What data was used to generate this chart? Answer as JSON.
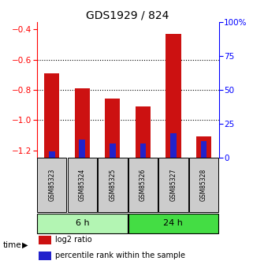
{
  "title": "GDS1929 / 824",
  "samples": [
    "GSM85323",
    "GSM85324",
    "GSM85325",
    "GSM85326",
    "GSM85327",
    "GSM85328"
  ],
  "log2_ratios": [
    -0.69,
    -0.79,
    -0.86,
    -0.91,
    -0.43,
    -1.11
  ],
  "percentile_ranks": [
    5,
    14,
    11,
    11,
    19,
    13
  ],
  "groups": [
    "6 h",
    "6 h",
    "6 h",
    "24 h",
    "24 h",
    "24 h"
  ],
  "group_labels": [
    "6 h",
    "24 h"
  ],
  "group_colors": [
    "#b3f5b3",
    "#44dd44"
  ],
  "left_ylim": [
    -1.25,
    -0.35
  ],
  "left_yticks": [
    -1.2,
    -1.0,
    -0.8,
    -0.6,
    -0.4
  ],
  "right_ylim": [
    0,
    106.25
  ],
  "right_yticks": [
    0,
    25,
    50,
    75,
    100
  ],
  "right_yticklabels": [
    "0",
    "25",
    "50",
    "75",
    "100%"
  ],
  "bar_color_red": "#cc1111",
  "bar_color_blue": "#2222cc",
  "bar_width": 0.5,
  "sample_bg_color": "#cccccc",
  "time_label": "time",
  "legend_log2": "log2 ratio",
  "legend_pct": "percentile rank within the sample",
  "grid_yticks": [
    -0.6,
    -0.8,
    -1.0
  ]
}
